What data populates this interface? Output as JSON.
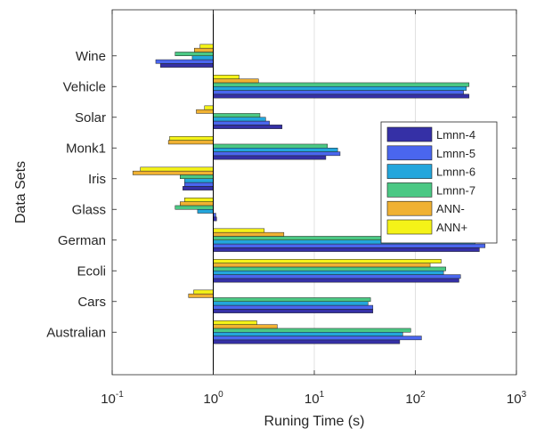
{
  "chart_data": {
    "type": "bar",
    "orientation": "horizontal",
    "title": "",
    "xlabel": "Runing Time (s)",
    "ylabel": "Data Sets",
    "xscale": "log",
    "xlim": [
      0.1,
      1000
    ],
    "xticks": [
      {
        "base": "10",
        "exp": "-1"
      },
      {
        "base": "10",
        "exp": "0"
      },
      {
        "base": "10",
        "exp": "1"
      },
      {
        "base": "10",
        "exp": "2"
      },
      {
        "base": "10",
        "exp": "3"
      }
    ],
    "grid": true,
    "bar_baseline": 1,
    "legend_position": "right",
    "categories": [
      "Australian",
      "Cars",
      "Ecoli",
      "German",
      "Glass",
      "Iris",
      "Monk1",
      "Solar",
      "Vehicle",
      "Wine"
    ],
    "series": [
      {
        "name": "Lmnn-4",
        "color": "#3530a6",
        "values": [
          70,
          38,
          270,
          430,
          1.08,
          0.5,
          13,
          4.8,
          340,
          0.3
        ]
      },
      {
        "name": "Lmnn-5",
        "color": "#4a66ee",
        "values": [
          115,
          38,
          280,
          490,
          1.06,
          0.52,
          18,
          3.6,
          300,
          0.27
        ]
      },
      {
        "name": "Lmnn-6",
        "color": "#23a6dc",
        "values": [
          75,
          34,
          190,
          390,
          0.7,
          0.52,
          17,
          3.3,
          320,
          0.62
        ]
      },
      {
        "name": "Lmnn-7",
        "color": "#4bc884",
        "values": [
          90,
          36,
          200,
          460,
          0.42,
          0.47,
          13.5,
          2.9,
          340,
          0.42
        ]
      },
      {
        "name": "ANN-",
        "color": "#f0b132",
        "values": [
          4.3,
          0.57,
          140,
          5,
          0.47,
          0.16,
          0.36,
          0.68,
          2.8,
          0.65
        ]
      },
      {
        "name": "ANN+",
        "color": "#f5f318",
        "values": [
          2.7,
          0.64,
          180,
          3.2,
          0.52,
          0.19,
          0.37,
          0.82,
          1.8,
          0.74
        ]
      }
    ]
  }
}
